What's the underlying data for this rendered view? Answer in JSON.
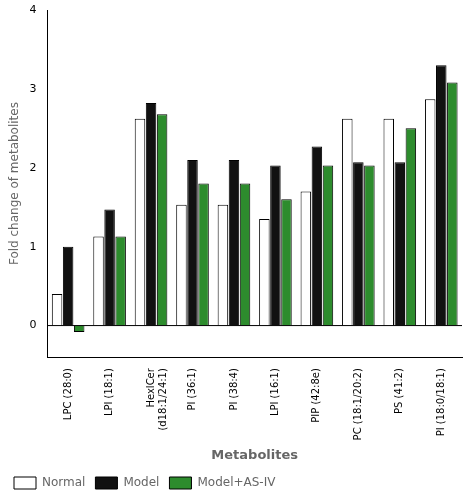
{
  "chart_data": {
    "type": "bar",
    "categories": [
      "LPC (28:0)",
      "LPI (18:1)",
      "HexlCer\n(d18:1/24:1)",
      "PI (36:1)",
      "PI (38:4)",
      "LPI (16:1)",
      "PIP (42:8e)",
      "PC (18:1/20:2)",
      "PS (41:2)",
      "PI (18:0/18:1)"
    ],
    "series": [
      {
        "name": "Normal",
        "color": "#ffffff",
        "values": [
          0.4,
          1.13,
          2.62,
          1.53,
          1.53,
          1.35,
          1.7,
          2.62,
          2.62,
          2.87
        ]
      },
      {
        "name": "Model",
        "color": "#111111",
        "values": [
          1.0,
          1.47,
          2.82,
          2.1,
          2.1,
          2.03,
          2.27,
          2.07,
          2.07,
          3.3
        ]
      },
      {
        "name": "Model+AS-IV",
        "color": "#2d8c2d",
        "values": [
          -0.08,
          1.13,
          2.68,
          1.8,
          1.8,
          1.6,
          2.03,
          2.03,
          2.5,
          3.08
        ]
      }
    ],
    "ylim": [
      -0.4,
      4.0
    ],
    "yticks": [
      0,
      1,
      2,
      3,
      4
    ],
    "ylabel": "Fold change of metabolites",
    "xlabel": "Metabolites",
    "grid": false,
    "legend": "bottom"
  }
}
